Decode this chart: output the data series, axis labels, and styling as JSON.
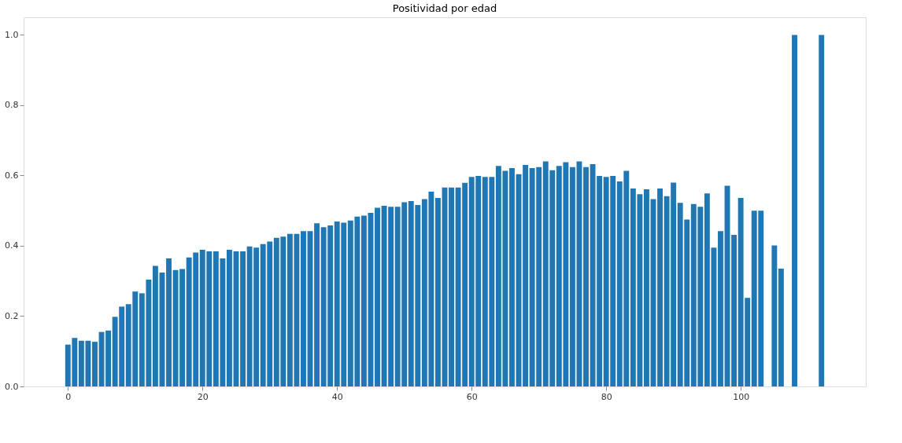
{
  "chart_data": {
    "type": "bar",
    "title": "Positividad por edad",
    "color": "#1f77b4",
    "x": [
      0,
      1,
      2,
      3,
      4,
      5,
      6,
      7,
      8,
      9,
      10,
      11,
      12,
      13,
      14,
      15,
      16,
      17,
      18,
      19,
      20,
      21,
      22,
      23,
      24,
      25,
      26,
      27,
      28,
      29,
      30,
      31,
      32,
      33,
      34,
      35,
      36,
      37,
      38,
      39,
      40,
      41,
      42,
      43,
      44,
      45,
      46,
      47,
      48,
      49,
      50,
      51,
      52,
      53,
      54,
      55,
      56,
      57,
      58,
      59,
      60,
      61,
      62,
      63,
      64,
      65,
      66,
      67,
      68,
      69,
      70,
      71,
      72,
      73,
      74,
      75,
      76,
      77,
      78,
      79,
      80,
      81,
      82,
      83,
      84,
      85,
      86,
      87,
      88,
      89,
      90,
      91,
      92,
      93,
      94,
      95,
      96,
      97,
      98,
      99,
      100,
      101,
      102,
      103,
      105,
      106,
      108,
      112
    ],
    "values": [
      0.119,
      0.138,
      0.13,
      0.13,
      0.127,
      0.155,
      0.159,
      0.198,
      0.227,
      0.234,
      0.27,
      0.265,
      0.304,
      0.343,
      0.324,
      0.364,
      0.331,
      0.334,
      0.367,
      0.381,
      0.389,
      0.384,
      0.384,
      0.364,
      0.389,
      0.384,
      0.384,
      0.398,
      0.395,
      0.405,
      0.412,
      0.423,
      0.426,
      0.434,
      0.434,
      0.442,
      0.442,
      0.464,
      0.453,
      0.458,
      0.469,
      0.466,
      0.472,
      0.483,
      0.486,
      0.494,
      0.508,
      0.514,
      0.511,
      0.511,
      0.524,
      0.527,
      0.516,
      0.533,
      0.554,
      0.536,
      0.566,
      0.566,
      0.566,
      0.579,
      0.596,
      0.599,
      0.596,
      0.596,
      0.627,
      0.613,
      0.621,
      0.604,
      0.63,
      0.621,
      0.624,
      0.64,
      0.615,
      0.627,
      0.638,
      0.624,
      0.64,
      0.624,
      0.632,
      0.599,
      0.596,
      0.599,
      0.583,
      0.613,
      0.563,
      0.547,
      0.561,
      0.533,
      0.563,
      0.541,
      0.58,
      0.522,
      0.475,
      0.519,
      0.511,
      0.549,
      0.395,
      0.442,
      0.571,
      0.431,
      0.536,
      0.252,
      0.5,
      0.5,
      0.401,
      0.335,
      1.0,
      1.0
    ],
    "xlim": [
      -6,
      118
    ],
    "xticks": [
      0,
      20,
      40,
      60,
      80,
      100
    ],
    "ylim": [
      0,
      1.05
    ],
    "yticks": [
      {
        "value": 0,
        "label": "0.0"
      },
      {
        "value": 0.2,
        "label": "0.2"
      },
      {
        "value": 0.4,
        "label": "0.4"
      },
      {
        "value": 0.6,
        "label": "0.6"
      },
      {
        "value": 0.8,
        "label": "0.8"
      },
      {
        "value": 1.0,
        "label": "1.0"
      }
    ],
    "grid": false
  }
}
